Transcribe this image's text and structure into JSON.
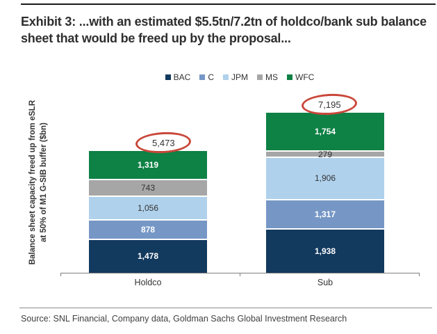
{
  "title": "Exhibit 3: ...with an estimated $5.5tn/7.2tn of holdco/bank sub balance sheet that would be freed up by the proposal...",
  "source": "Source: SNL Financial, Company data, Goldman Sachs Global Investment Research",
  "chart_data": {
    "type": "bar",
    "stacked": true,
    "title": "Exhibit 3: ...with an estimated $5.5tn/7.2tn of holdco/bank sub balance sheet that would be freed up by the proposal...",
    "categories": [
      "Holdco",
      "Sub"
    ],
    "series": [
      {
        "name": "BAC",
        "color": "#12395E",
        "label_color": "#FFFFFF",
        "values": [
          1478,
          1938
        ]
      },
      {
        "name": "C",
        "color": "#7697C6",
        "label_color": "#FFFFFF",
        "values": [
          878,
          1317
        ]
      },
      {
        "name": "JPM",
        "color": "#AFD1EC",
        "label_color": "#333333",
        "values": [
          1056,
          1906
        ]
      },
      {
        "name": "MS",
        "color": "#A6A6A6",
        "label_color": "#333333",
        "values": [
          743,
          279
        ]
      },
      {
        "name": "WFC",
        "color": "#0E8145",
        "label_color": "#FFFFFF",
        "values": [
          1319,
          1754
        ]
      }
    ],
    "totals": [
      5473,
      7195
    ],
    "totals_circled": true,
    "circle_color": "#C9473A",
    "ylabel": "Balance sheet capacity freed up from eSLR at 50% of M1 G-SIB buffer ($bn)",
    "xlabel": "",
    "ylim": [
      0,
      7500
    ],
    "gridlines": false,
    "y_axis_ticks": "none",
    "legend_position": "top",
    "value_labels": "inside-segments"
  }
}
